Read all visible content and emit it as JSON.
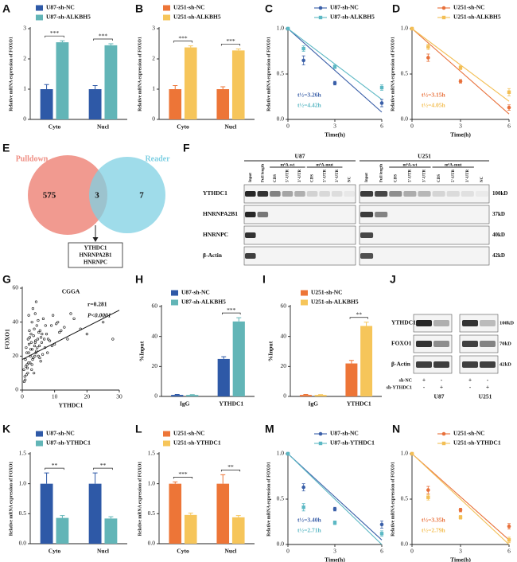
{
  "chart_data": [
    {
      "type": "bar",
      "label": "A",
      "ylabel": "Relative mRNA expression of FOXO1",
      "categories": [
        "Cyto",
        "Nucl"
      ],
      "series": [
        {
          "name": "U87-sh-NC",
          "color": "#2e59a7",
          "values": [
            1,
            1
          ],
          "errors": [
            0.15,
            0.12
          ]
        },
        {
          "name": "U87-sh-ALKBH5",
          "color": "#62b5b7",
          "values": [
            2.55,
            2.45
          ],
          "errors": [
            0.05,
            0.05
          ]
        }
      ],
      "significance": [
        "***",
        "***"
      ],
      "ylim": [
        0,
        3
      ],
      "yticks": [
        0,
        1,
        2,
        3
      ]
    },
    {
      "type": "bar",
      "label": "B",
      "ylabel": "Relative mRNA expression of FOXO1",
      "categories": [
        "Cyto",
        "Nucl"
      ],
      "series": [
        {
          "name": "U251-sh-NC",
          "color": "#ed7537",
          "values": [
            1,
            1
          ],
          "errors": [
            0.12,
            0.08
          ]
        },
        {
          "name": "U251-sh-ALKBH5",
          "color": "#f6c55a",
          "values": [
            2.38,
            2.28
          ],
          "errors": [
            0.05,
            0.05
          ]
        }
      ],
      "significance": [
        "***",
        "***"
      ],
      "ylim": [
        0,
        3
      ],
      "yticks": [
        0,
        1,
        2,
        3
      ]
    },
    {
      "type": "line",
      "label": "C",
      "xlabel": "Time(h)",
      "ylabel": "Relative mRNA expression of FOXO1",
      "x": [
        0,
        1,
        3,
        6
      ],
      "fit_x": [
        0,
        6
      ],
      "series": [
        {
          "name": "U87-sh-NC",
          "color": "#3a5fa8",
          "values": [
            1.0,
            0.65,
            0.4,
            0.18
          ],
          "errors": [
            0,
            0.05,
            0.02,
            0.04
          ],
          "fit": [
            1.0,
            0.08
          ],
          "annotation": "t½=3.26h"
        },
        {
          "name": "U87-sh-ALKBH5",
          "color": "#5cb8c4",
          "values": [
            1.0,
            0.78,
            0.58,
            0.35
          ],
          "errors": [
            0,
            0.03,
            0.02,
            0.03
          ],
          "fit": [
            1.0,
            0.22
          ],
          "annotation": "t½=4.42h"
        }
      ],
      "xlim": [
        0,
        6
      ],
      "xticks": [
        0,
        3,
        6
      ],
      "ylim": [
        0,
        1
      ],
      "yticks": [
        {
          "value": 0,
          "label": "0.0"
        },
        0.5,
        {
          "value": 1,
          "label": "1.0"
        }
      ]
    },
    {
      "type": "line",
      "label": "D",
      "xlabel": "Time(h)",
      "ylabel": "Relative mRNA expression of FOXO1",
      "x": [
        0,
        1,
        3,
        6
      ],
      "fit_x": [
        0,
        6
      ],
      "series": [
        {
          "name": "U251-sh-NC",
          "color": "#e8703a",
          "values": [
            1.0,
            0.68,
            0.42,
            0.13
          ],
          "errors": [
            0,
            0.04,
            0.02,
            0.03
          ],
          "fit": [
            1.0,
            0.06
          ],
          "annotation": "t½=3.15h"
        },
        {
          "name": "U251-sh-ALKBH5",
          "color": "#f3bf55",
          "values": [
            1.0,
            0.8,
            0.57,
            0.3
          ],
          "errors": [
            0,
            0.03,
            0.02,
            0.04
          ],
          "fit": [
            1.0,
            0.2
          ],
          "annotation": "t½=4.05h"
        }
      ],
      "xlim": [
        0,
        6
      ],
      "xticks": [
        0,
        3,
        6
      ],
      "ylim": [
        0,
        1
      ],
      "yticks": [
        {
          "value": 0,
          "label": "0.0"
        },
        0.5,
        {
          "value": 1,
          "label": "1.0"
        }
      ]
    },
    {
      "type": "scatter",
      "label": "G",
      "title": "CGGA",
      "annotations": [
        "r=0.281",
        "P<0.0001"
      ],
      "xlabel": "YTHDC1",
      "ylabel": "FOXO1",
      "color": "#111111",
      "x": [
        0.5,
        1,
        1.2,
        1.5,
        1.8,
        2,
        2.2,
        2.5,
        2.8,
        3,
        3.2,
        3.5,
        3.8,
        4,
        4.2,
        4.5,
        4.8,
        5,
        5.5,
        6,
        6.5,
        7,
        7.5,
        8,
        9,
        10,
        11,
        12,
        14,
        16,
        18,
        20,
        25,
        28,
        0.8,
        1.1,
        1.4,
        1.7,
        2.1,
        2.4,
        2.7,
        3.1,
        3.4,
        3.7,
        4.1,
        4.4,
        4.9,
        5.3,
        5.8,
        6.3,
        7.2,
        8.5,
        9.5,
        11.5,
        13,
        15,
        0.6,
        1.3,
        1.9,
        2.3,
        2.9,
        3.3,
        3.9,
        4.6,
        5.1,
        5.7,
        6.8,
        7.8,
        9.2,
        10.5,
        1.6,
        2.6,
        3.6,
        4.3,
        5.4,
        6.1,
        0.9,
        2.0,
        3.0,
        4.0
      ],
      "values": [
        12,
        18,
        25,
        15,
        30,
        22,
        35,
        20,
        28,
        40,
        18,
        32,
        26,
        45,
        22,
        38,
        30,
        20,
        35,
        28,
        42,
        25,
        33,
        30,
        38,
        27,
        40,
        35,
        30,
        42,
        36,
        33,
        40,
        30,
        8,
        14,
        22,
        10,
        27,
        16,
        33,
        24,
        19,
        36,
        29,
        23,
        41,
        26,
        31,
        21,
        38,
        29,
        44,
        34,
        37,
        45,
        5,
        9,
        16,
        31,
        12,
        48,
        20,
        25,
        34,
        17,
        30,
        22,
        26,
        39,
        13,
        24,
        10,
        52,
        19,
        33,
        6,
        44,
        15,
        28
      ],
      "fit_x": [
        0,
        30
      ],
      "fit": [
        18,
        47
      ],
      "xlim": [
        0,
        30
      ],
      "xticks": [
        0,
        10,
        20,
        30
      ],
      "ylim": [
        0,
        60
      ],
      "yticks": [
        0,
        20,
        40,
        60
      ]
    },
    {
      "type": "bar",
      "label": "H",
      "ylabel": "%Input",
      "categories": [
        "IgG",
        "YTHDC1"
      ],
      "series": [
        {
          "name": "U87-sh-NC",
          "color": "#2e59a7",
          "values": [
            1,
            25
          ],
          "errors": [
            0.3,
            1.5
          ]
        },
        {
          "name": "U87-sh-ALKBH5",
          "color": "#62b5b7",
          "values": [
            1,
            50
          ],
          "errors": [
            0.2,
            2.5
          ]
        }
      ],
      "significance": [
        null,
        "***"
      ],
      "ylim": [
        0,
        60
      ],
      "yticks": [
        0,
        20,
        40,
        60
      ]
    },
    {
      "type": "bar",
      "label": "I",
      "ylabel": "%Input",
      "categories": [
        "IgG",
        "YTHDC1"
      ],
      "series": [
        {
          "name": "U251-sh-NC",
          "color": "#ed7537",
          "values": [
            1,
            22
          ],
          "errors": [
            0.3,
            2
          ]
        },
        {
          "name": "U251-sh-ALKBH5",
          "color": "#f6c55a",
          "values": [
            1,
            47
          ],
          "errors": [
            0.2,
            2.5
          ]
        }
      ],
      "significance": [
        null,
        "**"
      ],
      "ylim": [
        0,
        60
      ],
      "yticks": [
        0,
        20,
        40,
        60
      ]
    },
    {
      "type": "bar",
      "label": "K",
      "ylabel": "Relative mRNA expression of FOXO1",
      "categories": [
        "Cyto",
        "Nucl"
      ],
      "series": [
        {
          "name": "U87-sh-NC",
          "color": "#2e59a7",
          "values": [
            1,
            1
          ],
          "errors": [
            0.18,
            0.18
          ]
        },
        {
          "name": "U87-sh-YTHDC1",
          "color": "#62b5b7",
          "values": [
            0.43,
            0.42
          ],
          "errors": [
            0.04,
            0.03
          ]
        }
      ],
      "significance": [
        "**",
        "**"
      ],
      "ylim": [
        0,
        1.5
      ],
      "yticks": [
        {
          "value": 0,
          "label": "0.0"
        },
        0.5,
        {
          "value": 1,
          "label": "1.0"
        },
        1.5
      ]
    },
    {
      "type": "bar",
      "label": "L",
      "ylabel": "Relative mRNA expression of FOXO1",
      "categories": [
        "Cyto",
        "Nucl"
      ],
      "series": [
        {
          "name": "U251-sh-NC",
          "color": "#ed7537",
          "values": [
            1,
            1
          ],
          "errors": [
            0.03,
            0.15
          ]
        },
        {
          "name": "U251-sh-YTHDC1",
          "color": "#f6c55a",
          "values": [
            0.48,
            0.44
          ],
          "errors": [
            0.03,
            0.03
          ]
        }
      ],
      "significance": [
        "***",
        "**"
      ],
      "ylim": [
        0,
        1.5
      ],
      "yticks": [
        {
          "value": 0,
          "label": "0.0"
        },
        0.5,
        {
          "value": 1,
          "label": "1.0"
        },
        1.5
      ]
    },
    {
      "type": "line",
      "label": "M",
      "xlabel": "Time(h)",
      "ylabel": "Relative mRNA expression of FOXO1",
      "x": [
        0,
        1,
        3,
        6
      ],
      "fit_x": [
        0,
        6
      ],
      "series": [
        {
          "name": "U87-sh-NC",
          "color": "#3a5fa8",
          "values": [
            1.0,
            0.63,
            0.39,
            0.22
          ],
          "errors": [
            0,
            0.04,
            0.02,
            0.04
          ],
          "fit": [
            1.0,
            0.05
          ],
          "annotation": "t½=3.40h"
        },
        {
          "name": "U87-sh-YTHDC1",
          "color": "#5cb8c4",
          "values": [
            1.0,
            0.41,
            0.24,
            0.12
          ],
          "errors": [
            0,
            0.04,
            0.02,
            0.03
          ],
          "fit": [
            1.0,
            0.0
          ],
          "annotation": "t½=2.71h"
        }
      ],
      "xlim": [
        0,
        6
      ],
      "xticks": [
        0,
        3,
        6
      ],
      "ylim": [
        0,
        1
      ],
      "yticks": [
        {
          "value": 0,
          "label": "0.0"
        },
        0.5,
        {
          "value": 1,
          "label": "1.0"
        }
      ]
    },
    {
      "type": "line",
      "label": "N",
      "xlabel": "Time(h)",
      "ylabel": "Relative mRNA expression of FOXO1",
      "x": [
        0,
        1,
        3,
        6
      ],
      "fit_x": [
        0,
        6
      ],
      "series": [
        {
          "name": "U251-sh-NC",
          "color": "#e8703a",
          "values": [
            1.0,
            0.6,
            0.38,
            0.2
          ],
          "errors": [
            0,
            0.04,
            0.02,
            0.03
          ],
          "fit": [
            1.0,
            0.05
          ],
          "annotation": "t½=3.35h"
        },
        {
          "name": "U251-sh-YTHDC1",
          "color": "#f3bf55",
          "values": [
            1.0,
            0.52,
            0.3,
            0.05
          ],
          "errors": [
            0,
            0.03,
            0.02,
            0.03
          ],
          "fit": [
            1.0,
            0.0
          ],
          "annotation": "t½=2.79h"
        }
      ],
      "xlim": [
        0,
        6
      ],
      "xticks": [
        0,
        3,
        6
      ],
      "ylim": [
        0,
        1
      ],
      "yticks": [
        {
          "value": 0,
          "label": "0.0"
        },
        0.5,
        {
          "value": 1,
          "label": "1.0"
        }
      ]
    }
  ],
  "venn": {
    "label": "E",
    "left": {
      "name": "Pulldown",
      "only": "575"
    },
    "right": {
      "name": "Reader",
      "only": "7"
    },
    "overlap": "3",
    "overlap_genes": [
      "YTHDC1",
      "HNRNPA2B1",
      "HNRNPC"
    ]
  },
  "blot_f": {
    "label": "F",
    "groups": [
      "U87",
      "U251"
    ],
    "lanes": [
      "Input",
      "Full length",
      "CDS",
      "5'-UTR",
      "3'-UTR",
      "CDS",
      "5'-UTR",
      "3'-UTR",
      "NC"
    ],
    "lane_groups": [
      "m⁶A-wt",
      "m⁶A-mut"
    ],
    "rows": [
      "YTHDC1",
      "HNRNPA2B1",
      "HNRNPC",
      "β-Actin"
    ],
    "sizes": [
      "100kD",
      "37kD",
      "40kD",
      "42kD"
    ]
  },
  "blot_j": {
    "label": "J",
    "rows": [
      "YTHDC1",
      "FOXO1",
      "β-Actin"
    ],
    "sizes": [
      "100kD",
      "70kD",
      "42kD"
    ],
    "conditions": [
      {
        "name": "sh-NC",
        "marks": [
          "+",
          "-",
          "+",
          "-"
        ]
      },
      {
        "name": "sh-YTHDC1",
        "marks": [
          "-",
          "+",
          "-",
          "+"
        ]
      }
    ],
    "groups": [
      "U87",
      "U251"
    ]
  }
}
